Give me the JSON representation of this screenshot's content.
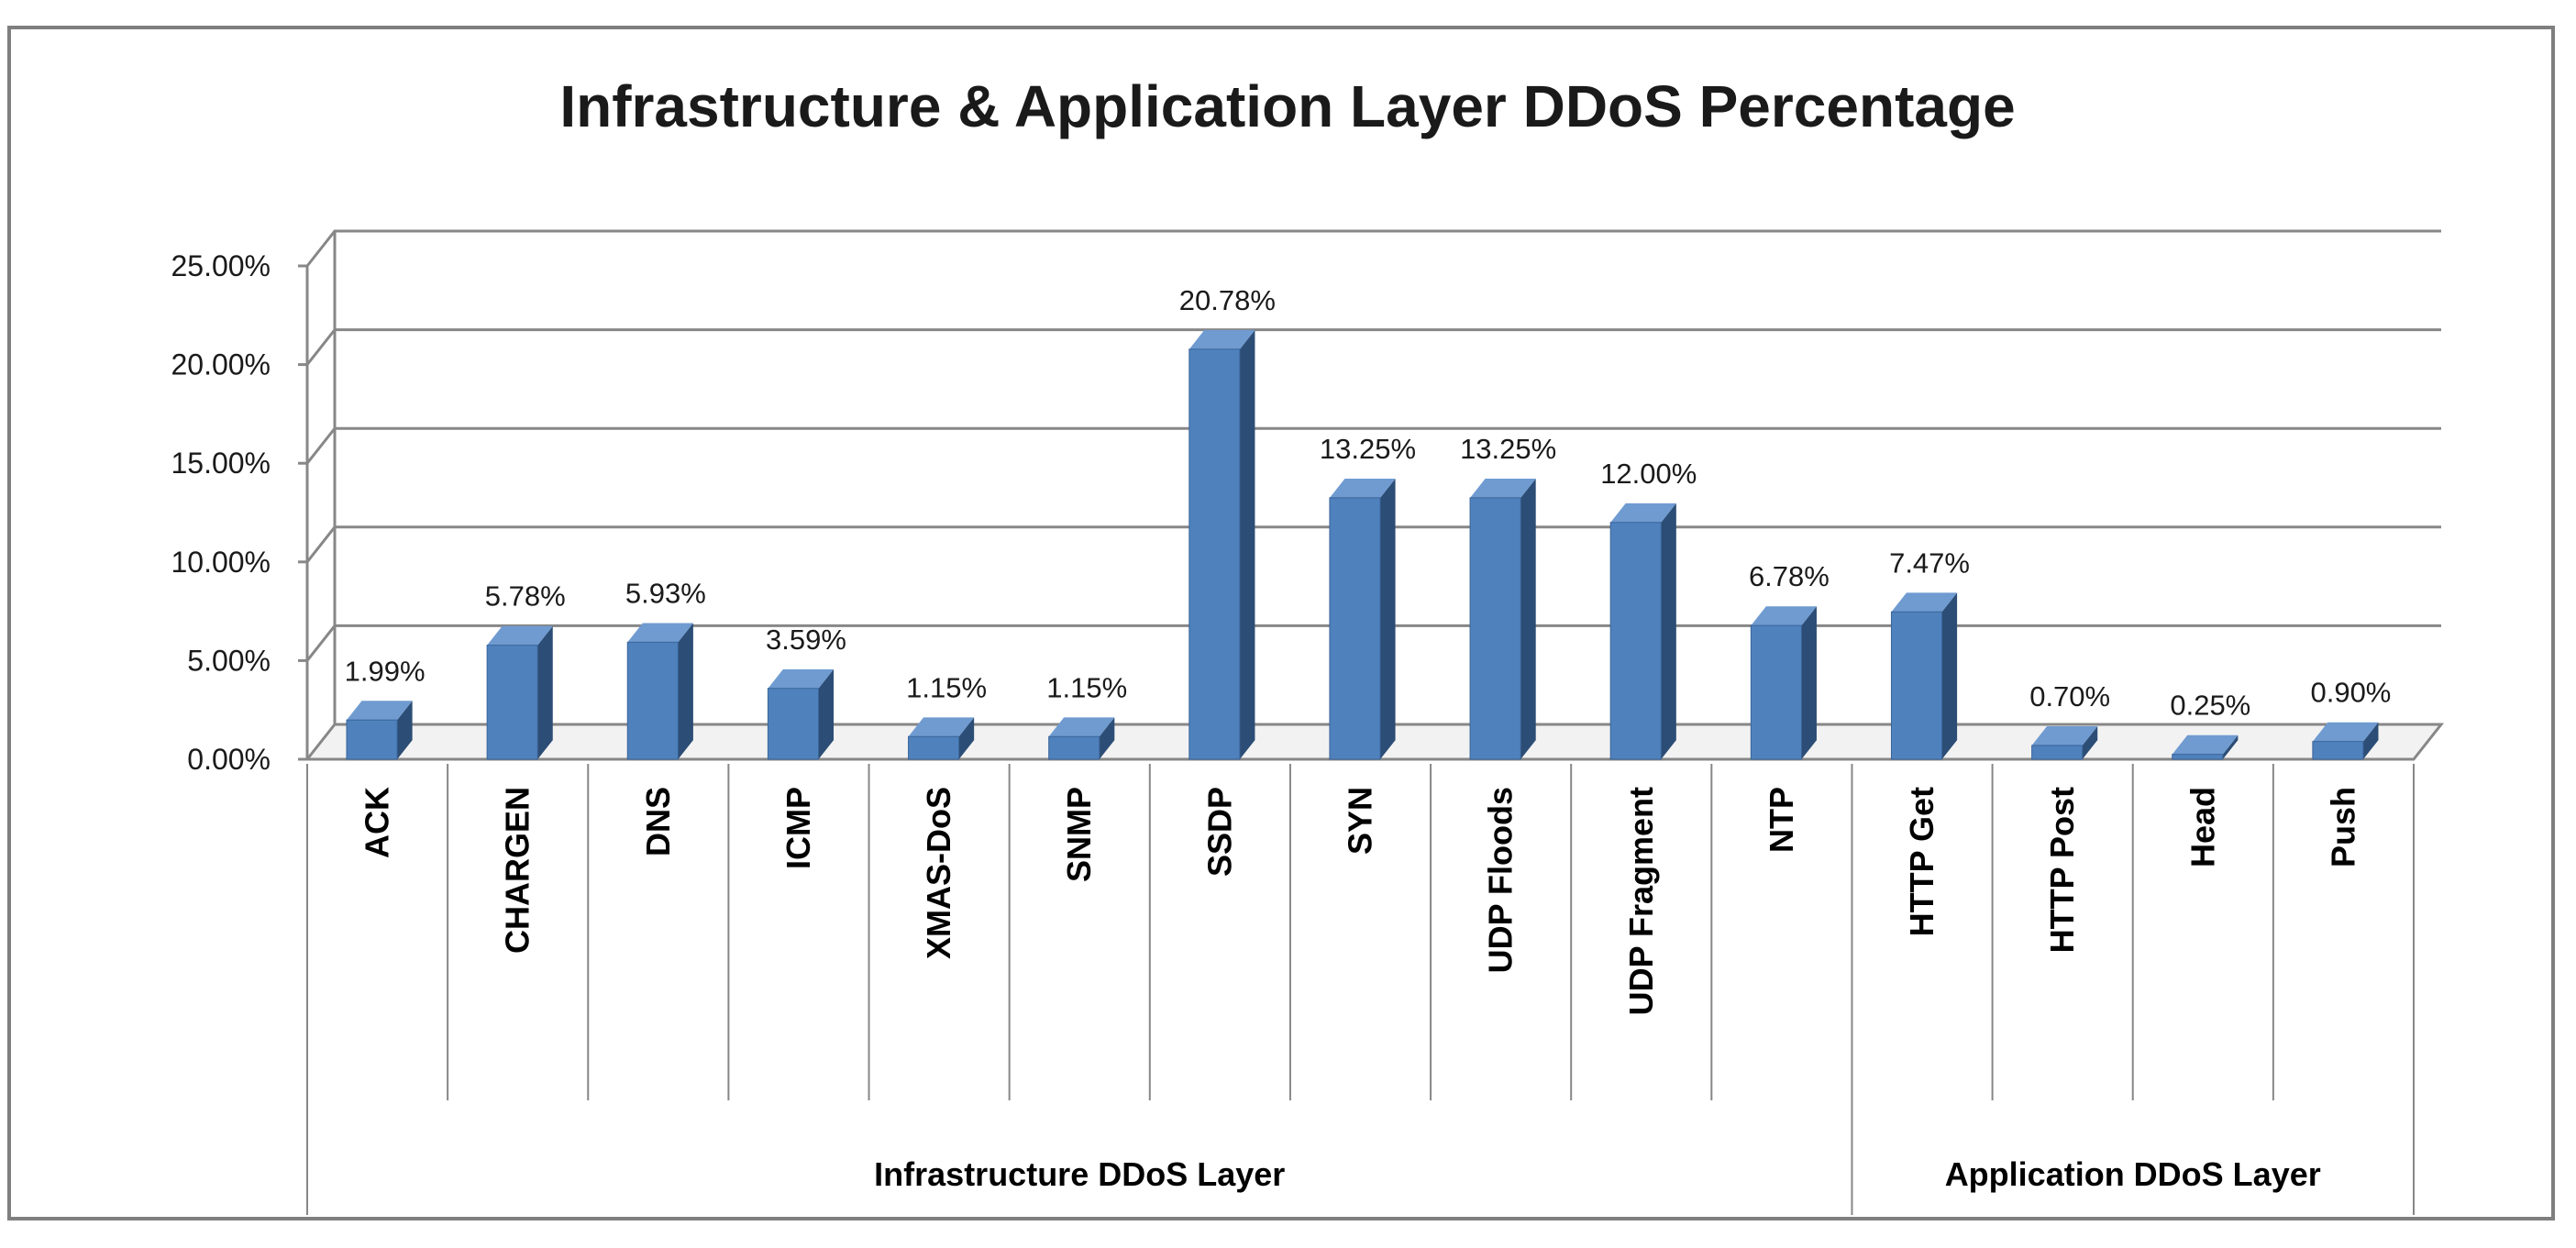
{
  "chart_data": {
    "type": "bar",
    "title": "Infrastructure & Application Layer DDoS Percentage",
    "xlabel": "",
    "ylabel": "",
    "ylim": [
      0,
      25
    ],
    "y_ticks": [
      "0.00%",
      "5.00%",
      "10.00%",
      "15.00%",
      "20.00%",
      "25.00%"
    ],
    "categories": [
      "ACK",
      "CHARGEN",
      "DNS",
      "ICMP",
      "XMAS-DoS",
      "SNMP",
      "SSDP",
      "SYN",
      "UDP Floods",
      "UDP Fragment",
      "NTP",
      "HTTP Get",
      "HTTP Post",
      "Head",
      "Push"
    ],
    "values": [
      1.99,
      5.78,
      5.93,
      3.59,
      1.15,
      1.15,
      20.78,
      13.25,
      13.25,
      12.0,
      6.78,
      7.47,
      0.7,
      0.25,
      0.9
    ],
    "data_labels": [
      "1.99%",
      "5.78%",
      "5.93%",
      "3.59%",
      "1.15%",
      "1.15%",
      "20.78%",
      "13.25%",
      "13.25%",
      "12.00%",
      "6.78%",
      "7.47%",
      "0.70%",
      "0.25%",
      "0.90%"
    ],
    "groups": [
      {
        "name": "Infrastructure DDoS Layer",
        "count": 11
      },
      {
        "name": "Application DDoS Layer",
        "count": 4
      }
    ],
    "grid": true,
    "legend": "none",
    "colors": {
      "bar_front": "#4f81bd",
      "bar_side": "#2c4d75",
      "bar_top": "#6f9bd1",
      "grid": "#878787",
      "frame": "#7f7f7f"
    }
  }
}
